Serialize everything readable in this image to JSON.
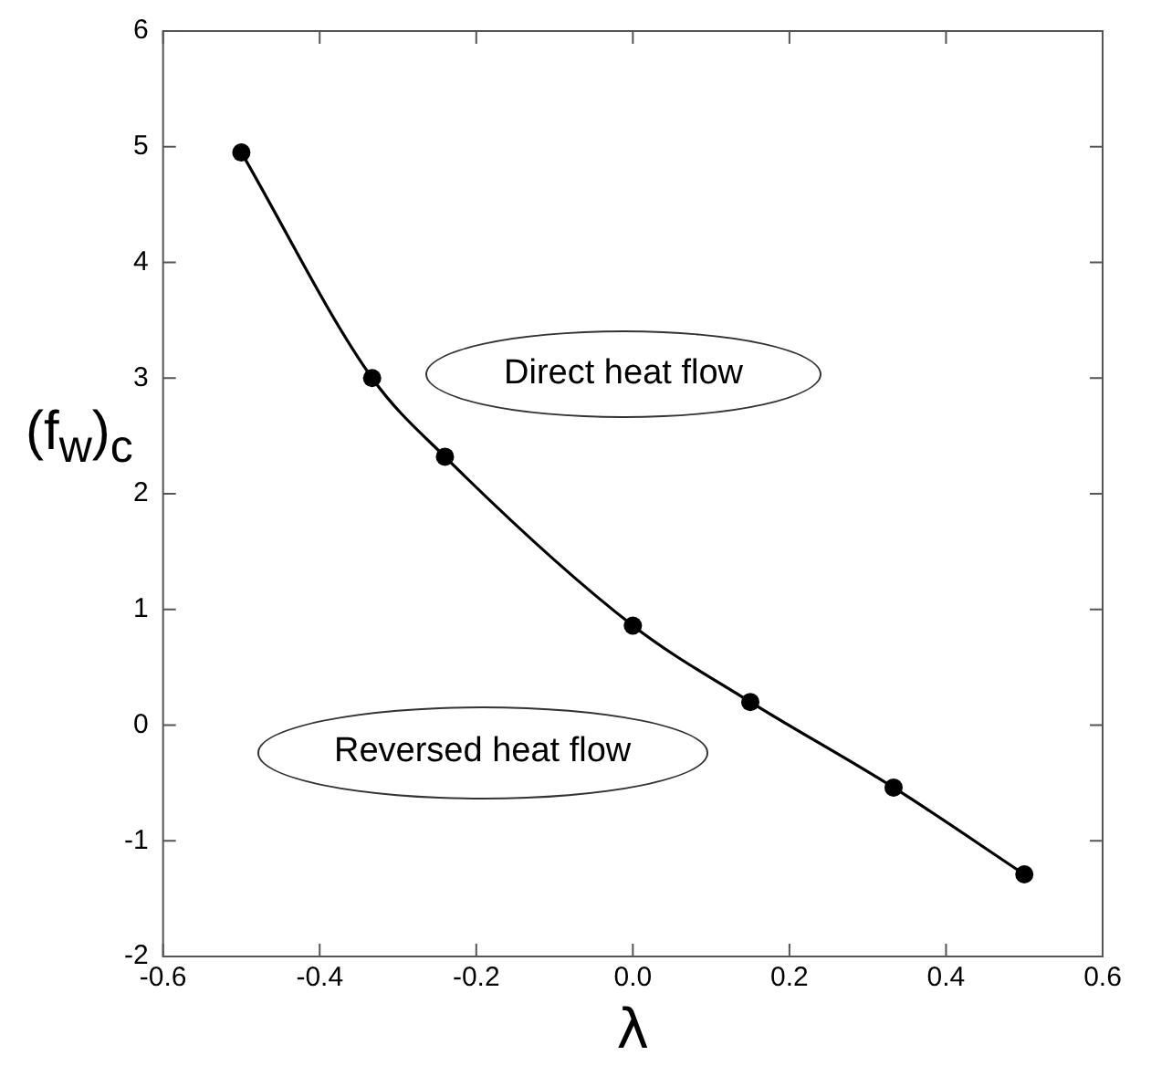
{
  "chart_data": {
    "type": "line",
    "xlabel": "λ",
    "ylabel": "(f$_{w}$)$_{c}$",
    "x": [
      -0.5,
      -0.333,
      -0.24,
      0,
      0.15,
      0.333,
      0.5
    ],
    "series": [
      {
        "color": "#000000",
        "values": [
          4.95,
          3.0,
          2.32,
          0.86,
          0.2,
          -0.54,
          -1.29
        ]
      }
    ],
    "xlim": [
      -0.6,
      0.6
    ],
    "xticks": [
      -0.6,
      -0.4,
      -0.2,
      {
        "value": 0,
        "label": "0.0"
      },
      0.2,
      0.4,
      0.6
    ],
    "ylim": [
      -2,
      6
    ],
    "yticks": [
      -2,
      -1,
      0,
      1,
      2,
      3,
      4,
      5,
      6
    ],
    "marker": "circle",
    "line_style": "solid",
    "grid": false,
    "legend": false,
    "annotations": [
      "Direct heat flow",
      "Reversed heat flow"
    ]
  }
}
